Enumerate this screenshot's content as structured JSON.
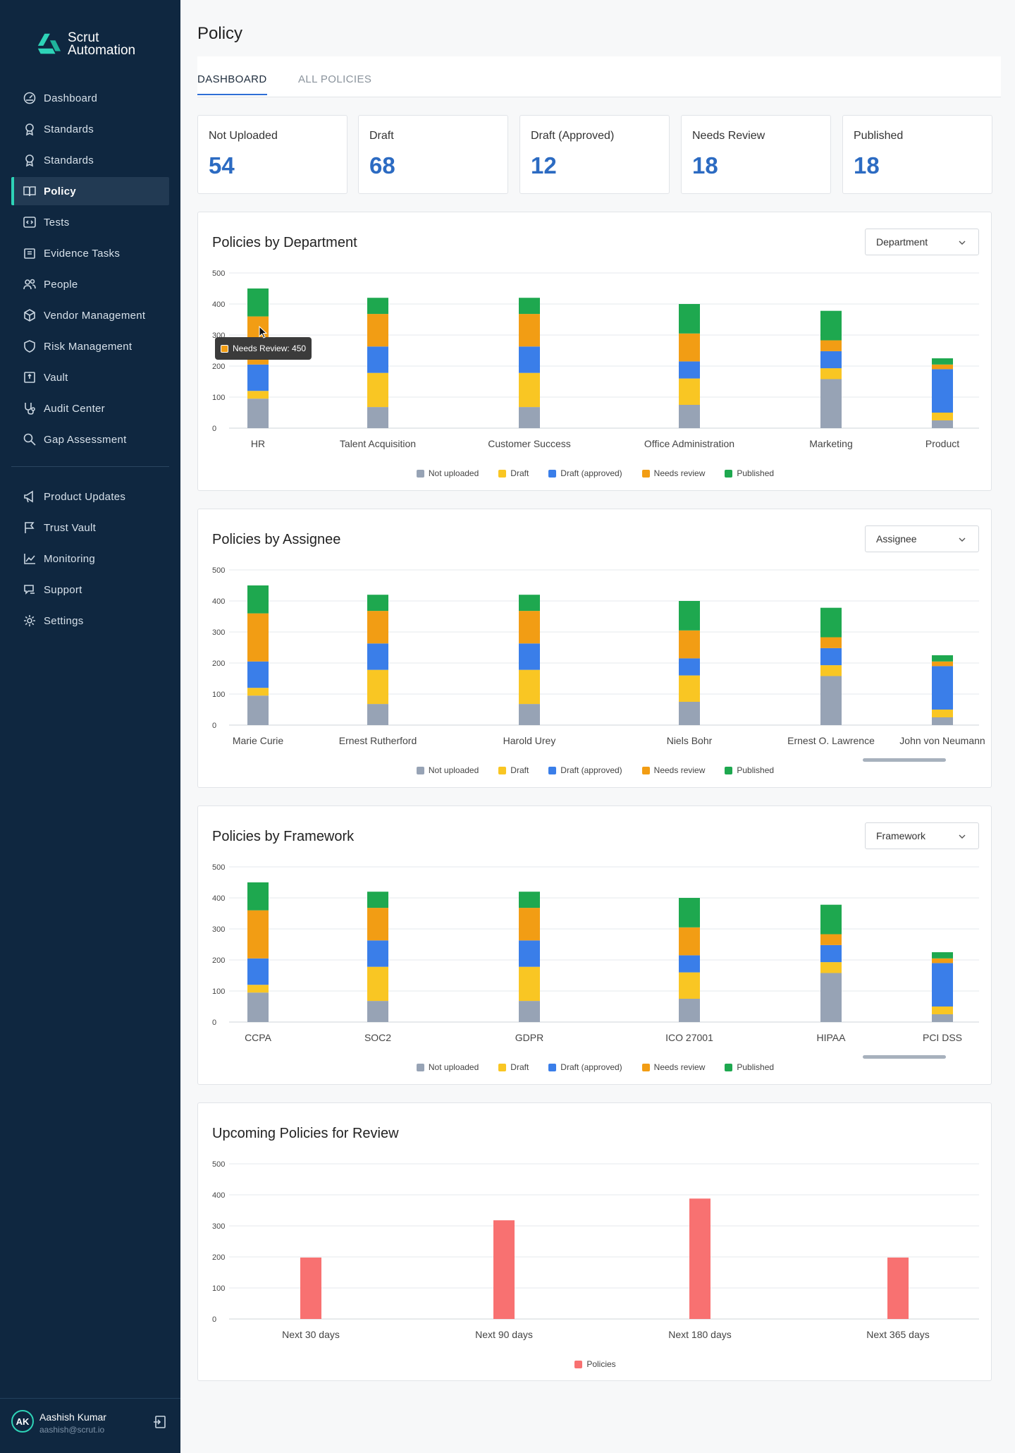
{
  "app": {
    "logo_line1": "Scrut",
    "logo_line2": "Automation"
  },
  "sidebar": {
    "items": [
      {
        "label": "Dashboard",
        "icon": "dashboard-icon"
      },
      {
        "label": "Standards",
        "icon": "award-icon"
      },
      {
        "label": "Standards",
        "icon": "award-icon"
      },
      {
        "label": "Policy",
        "icon": "book-icon",
        "active": true
      },
      {
        "label": "Tests",
        "icon": "code-icon"
      },
      {
        "label": "Evidence Tasks",
        "icon": "clipboard-icon"
      },
      {
        "label": "People",
        "icon": "people-icon"
      },
      {
        "label": "Vendor Management",
        "icon": "box-icon"
      },
      {
        "label": "Risk Management",
        "icon": "shield-icon"
      },
      {
        "label": "Vault",
        "icon": "vault-icon"
      },
      {
        "label": "Audit Center",
        "icon": "stethoscope-icon"
      },
      {
        "label": "Gap Assessment",
        "icon": "search-icon"
      }
    ],
    "bottom_items": [
      {
        "label": "Product Updates",
        "icon": "megaphone-icon"
      },
      {
        "label": "Trust Vault",
        "icon": "flag-icon"
      },
      {
        "label": "Monitoring",
        "icon": "chart-line-icon"
      },
      {
        "label": "Support",
        "icon": "support-icon"
      },
      {
        "label": "Settings",
        "icon": "gear-icon"
      }
    ],
    "user": {
      "initials": "AK",
      "name": "Aashish Kumar",
      "email": "aashish@scrut.io"
    }
  },
  "page": {
    "title": "Policy",
    "tabs": [
      "DASHBOARD",
      "ALL POLICIES"
    ]
  },
  "stats": [
    {
      "label": "Not Uploaded",
      "value": "54"
    },
    {
      "label": "Draft",
      "value": "68"
    },
    {
      "label": "Draft (Approved)",
      "value": "12"
    },
    {
      "label": "Needs Review",
      "value": "18"
    },
    {
      "label": "Published",
      "value": "18"
    }
  ],
  "colors": {
    "not_uploaded": "#97a3b5",
    "draft": "#f9c623",
    "draft_approved": "#3a7ee9",
    "needs_review": "#f29d14",
    "published": "#1ea84f",
    "policies": "#f87171",
    "accent": "#2c6bc2"
  },
  "tooltip": {
    "text": "Needs Review: 450"
  },
  "chart_data": [
    {
      "type": "bar",
      "stacked": true,
      "title": "Policies by Department",
      "dropdown": "Department",
      "categories": [
        "HR",
        "Talent Acquisition",
        "Customer Success",
        "Office Administration",
        "Marketing",
        "Product"
      ],
      "yticks": [
        0,
        100,
        200,
        300,
        400,
        500
      ],
      "ylim": [
        0,
        500
      ],
      "grid": true,
      "legend": "bottom",
      "series": [
        {
          "name": "Not uploaded",
          "values": [
            95,
            68,
            68,
            75,
            158,
            25
          ]
        },
        {
          "name": "Draft",
          "values": [
            25,
            110,
            110,
            85,
            35,
            25
          ]
        },
        {
          "name": "Draft (approved)",
          "values": [
            85,
            85,
            85,
            55,
            55,
            140
          ]
        },
        {
          "name": "Needs review",
          "values": [
            155,
            105,
            105,
            90,
            35,
            15
          ]
        },
        {
          "name": "Published",
          "values": [
            90,
            52,
            52,
            95,
            95,
            20
          ]
        }
      ]
    },
    {
      "type": "bar",
      "stacked": true,
      "title": "Policies by Assignee",
      "dropdown": "Assignee",
      "categories": [
        "Marie Curie",
        "Ernest Rutherford",
        "Harold Urey",
        "Niels Bohr",
        "Ernest O. Lawrence",
        "John von Neumann"
      ],
      "yticks": [
        0,
        100,
        200,
        300,
        400,
        500
      ],
      "ylim": [
        0,
        500
      ],
      "grid": true,
      "legend": "bottom",
      "series": [
        {
          "name": "Not uploaded",
          "values": [
            95,
            68,
            68,
            75,
            158,
            25
          ]
        },
        {
          "name": "Draft",
          "values": [
            25,
            110,
            110,
            85,
            35,
            25
          ]
        },
        {
          "name": "Draft (approved)",
          "values": [
            85,
            85,
            85,
            55,
            55,
            140
          ]
        },
        {
          "name": "Needs review",
          "values": [
            155,
            105,
            105,
            90,
            35,
            15
          ]
        },
        {
          "name": "Published",
          "values": [
            90,
            52,
            52,
            95,
            95,
            20
          ]
        }
      ]
    },
    {
      "type": "bar",
      "stacked": true,
      "title": "Policies by Framework",
      "dropdown": "Framework",
      "categories": [
        "CCPA",
        "SOC2",
        "GDPR",
        "ICO 27001",
        "HIPAA",
        "PCI DSS"
      ],
      "yticks": [
        0,
        100,
        200,
        300,
        400,
        500
      ],
      "ylim": [
        0,
        500
      ],
      "grid": true,
      "legend": "bottom",
      "series": [
        {
          "name": "Not uploaded",
          "values": [
            95,
            68,
            68,
            75,
            158,
            25
          ]
        },
        {
          "name": "Draft",
          "values": [
            25,
            110,
            110,
            85,
            35,
            25
          ]
        },
        {
          "name": "Draft (approved)",
          "values": [
            85,
            85,
            85,
            55,
            55,
            140
          ]
        },
        {
          "name": "Needs review",
          "values": [
            155,
            105,
            105,
            90,
            35,
            15
          ]
        },
        {
          "name": "Published",
          "values": [
            90,
            52,
            52,
            95,
            95,
            20
          ]
        }
      ]
    },
    {
      "type": "bar",
      "stacked": false,
      "title": "Upcoming Policies for Review",
      "categories": [
        "Next 30 days",
        "Next 90 days",
        "Next 180 days",
        "Next 365 days"
      ],
      "yticks": [
        0,
        100,
        200,
        300,
        400,
        500
      ],
      "ylim": [
        0,
        500
      ],
      "grid": true,
      "legend": "bottom",
      "series": [
        {
          "name": "Policies",
          "values": [
            198,
            318,
            388,
            198
          ]
        }
      ]
    }
  ]
}
